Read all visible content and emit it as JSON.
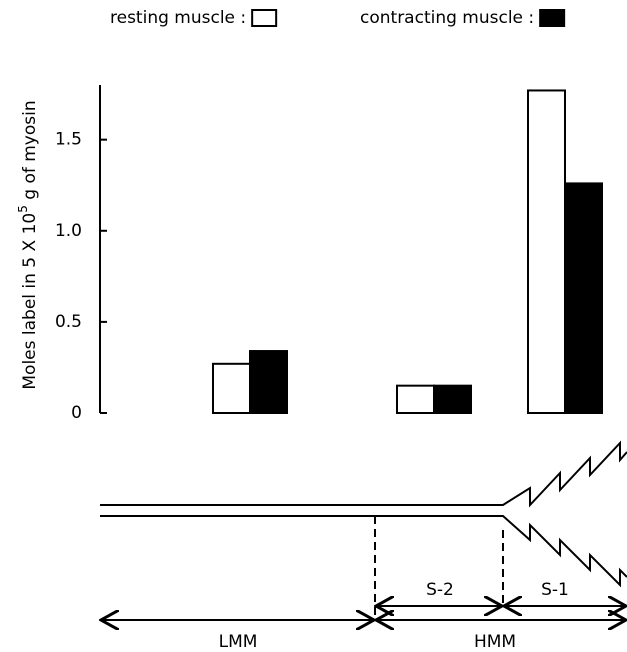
{
  "chart_data": {
    "type": "bar",
    "ylabel": [
      "Moles label in 5 X 10",
      "5",
      " g of myosin"
    ],
    "categories": [
      null,
      null,
      null
    ],
    "series": [
      {
        "name": "resting muscle :",
        "color": "#ffffff",
        "values": [
          0.27,
          0.15,
          1.77
        ]
      },
      {
        "name": "contracting muscle :",
        "color": "#000000",
        "values": [
          0.34,
          0.15,
          1.26
        ]
      }
    ],
    "ylim": [
      0,
      1.8
    ],
    "yticks": [
      0,
      0.5,
      {
        "value": 1,
        "label": "1.0"
      },
      1.5
    ],
    "annotations": [
      "LMM",
      "HMM",
      "S-2",
      "S-1"
    ]
  }
}
